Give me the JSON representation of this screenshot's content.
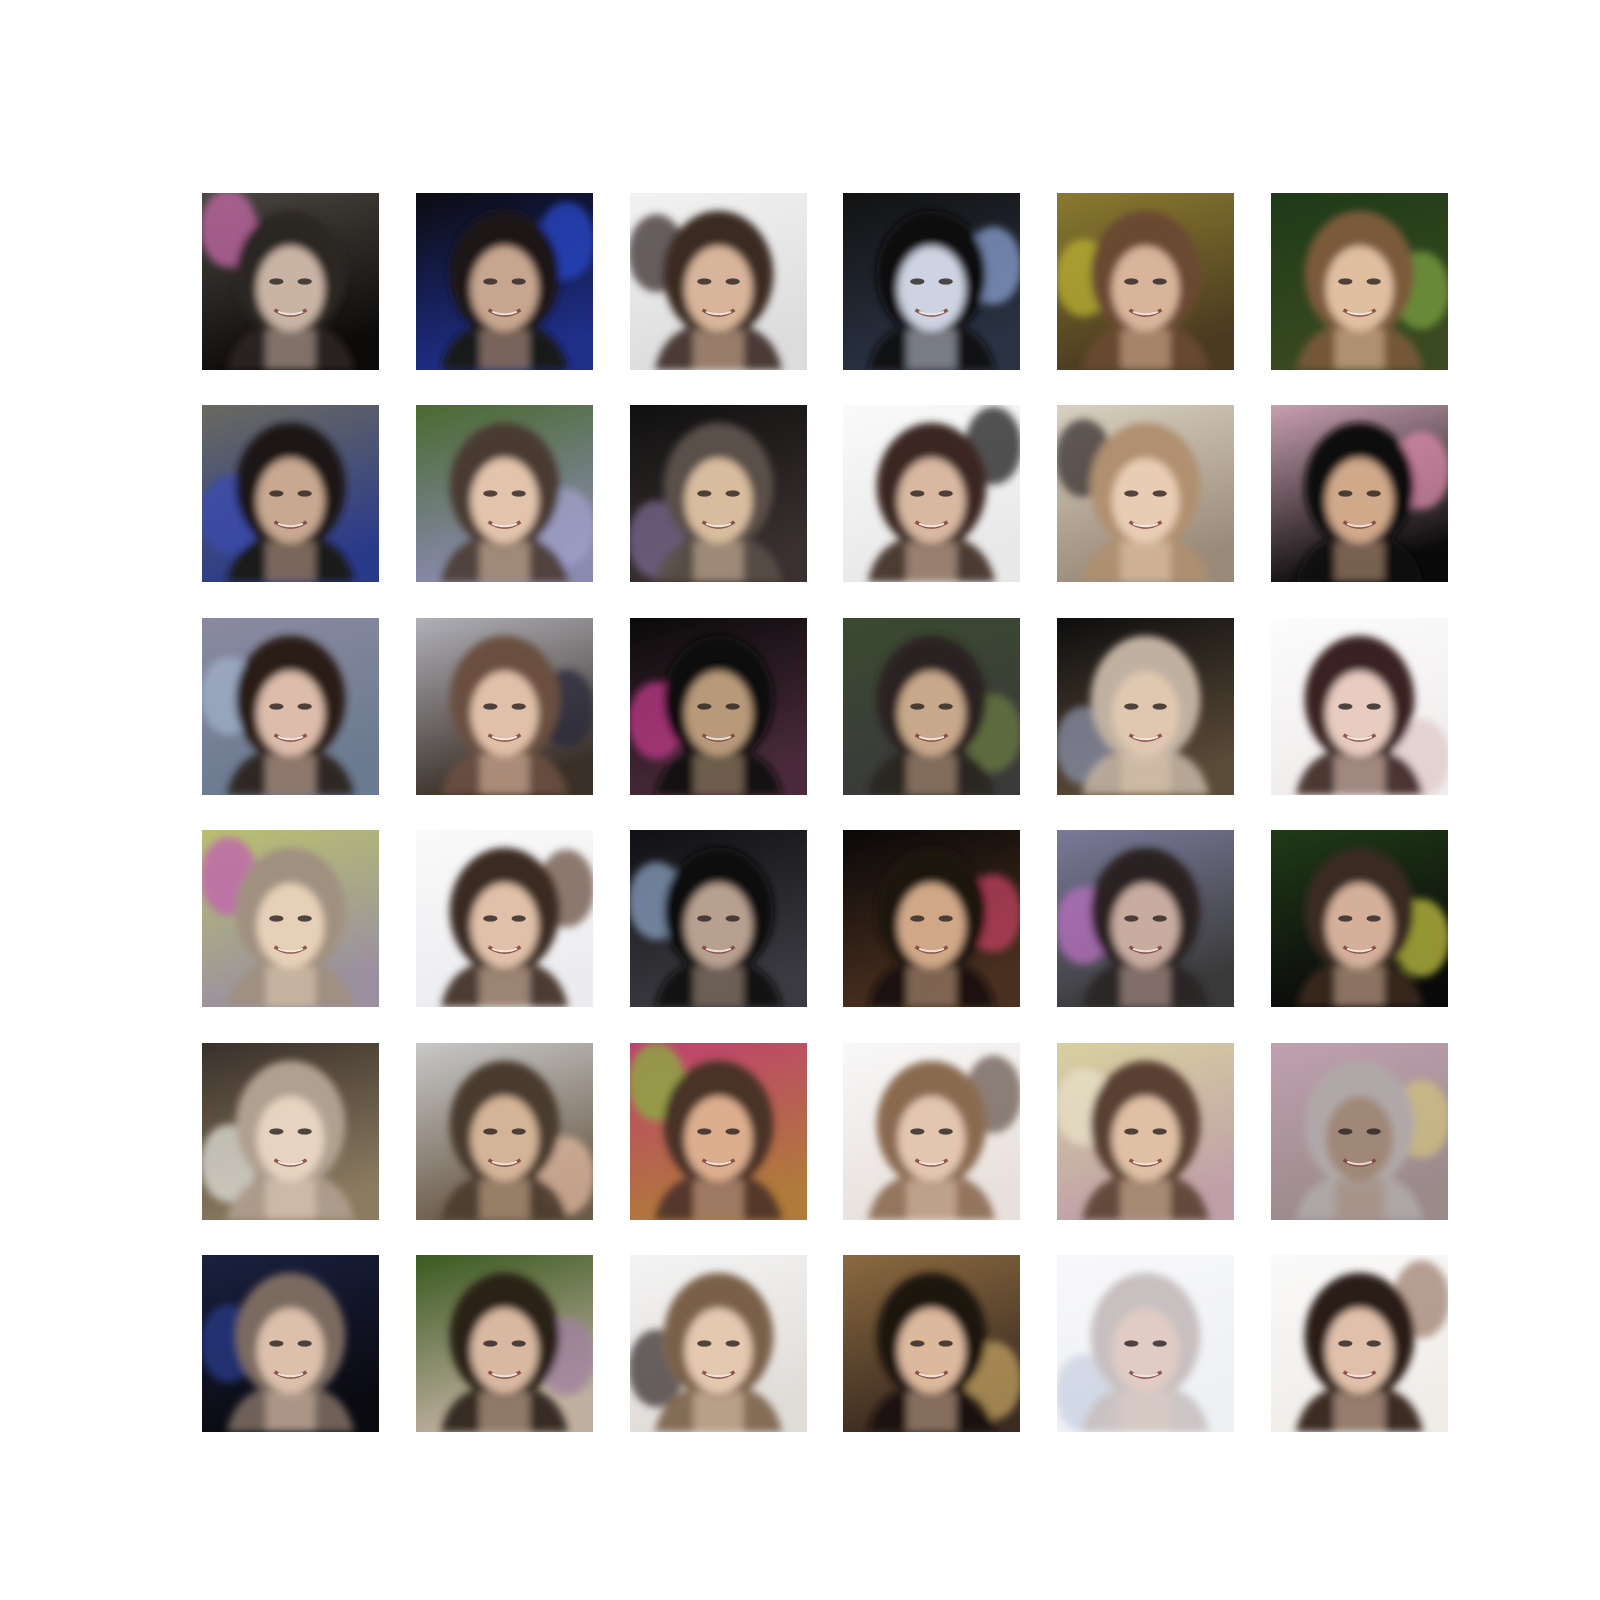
{
  "grid": {
    "rows": 6,
    "columns": 6,
    "samples": [
      {
        "bg_top": "#4a4640",
        "bg_bottom": "#0d0b0a",
        "accent": "#c46aa8",
        "hair": "#2b2522",
        "skin": "#c9b4a4"
      },
      {
        "bg_top": "#0b0b10",
        "bg_bottom": "#1f2f8a",
        "accent": "#2a47c8",
        "hair": "#1a1412",
        "skin": "#c7a68f"
      },
      {
        "bg_top": "#f2f2f2",
        "bg_bottom": "#dcdcdc",
        "accent": "#3a2e2c",
        "hair": "#3b2a22",
        "skin": "#d8b59a"
      },
      {
        "bg_top": "#121212",
        "bg_bottom": "#2a3244",
        "accent": "#8aa0d0",
        "hair": "#101010",
        "skin": "#cdd3e2"
      },
      {
        "bg_top": "#8a7a30",
        "bg_bottom": "#4a3a20",
        "accent": "#b8b030",
        "hair": "#6a4a30",
        "skin": "#d8b49a"
      },
      {
        "bg_top": "#1e3a18",
        "bg_bottom": "#3a4a20",
        "accent": "#7aa040",
        "hair": "#7a5a3a",
        "skin": "#e0bfa0"
      },
      {
        "bg_top": "#6a6a60",
        "bg_bottom": "#2a3a8a",
        "accent": "#3a4ab0",
        "hair": "#1a1512",
        "skin": "#c8a890"
      },
      {
        "bg_top": "#4a6a30",
        "bg_bottom": "#8a8ab0",
        "accent": "#a0a0c8",
        "hair": "#4a3a30",
        "skin": "#e2c4ac"
      },
      {
        "bg_top": "#101010",
        "bg_bottom": "#3a3030",
        "accent": "#7a6a90",
        "hair": "#5a5048",
        "skin": "#d8bc9e"
      },
      {
        "bg_top": "#fafafa",
        "bg_bottom": "#e8e8e8",
        "accent": "#1a1818",
        "hair": "#3a2820",
        "skin": "#d8b8a0"
      },
      {
        "bg_top": "#d8d0c0",
        "bg_bottom": "#9a8a7a",
        "accent": "#3a3030",
        "hair": "#b09070",
        "skin": "#e8cdb4"
      },
      {
        "bg_top": "#c8a0b0",
        "bg_bottom": "#0a0a0a",
        "accent": "#d88aa8",
        "hair": "#0e0c0c",
        "skin": "#d0a88a"
      },
      {
        "bg_top": "#8a8aa0",
        "bg_bottom": "#6a7a90",
        "accent": "#a0b0c8",
        "hair": "#2a1e18",
        "skin": "#dcbcaa"
      },
      {
        "bg_top": "#b0b0b8",
        "bg_bottom": "#3a3028",
        "accent": "#2a2a3a",
        "hair": "#6a5040",
        "skin": "#e0c0a8"
      },
      {
        "bg_top": "#0a0a0a",
        "bg_bottom": "#4a2a3a",
        "accent": "#c03a8a",
        "hair": "#101010",
        "skin": "#b89a7a"
      },
      {
        "bg_top": "#3a4a30",
        "bg_bottom": "#3a3a3a",
        "accent": "#6a7a40",
        "hair": "#2a2420",
        "skin": "#c8a88a"
      },
      {
        "bg_top": "#0e0e0e",
        "bg_bottom": "#5a4a38",
        "accent": "#8a90a8",
        "hair": "#c0b0a0",
        "skin": "#e0c8b0"
      },
      {
        "bg_top": "#fcfcfc",
        "bg_bottom": "#f0ecec",
        "accent": "#e0c8c8",
        "hair": "#3a2420",
        "skin": "#e8ccc0"
      },
      {
        "bg_top": "#b8c070",
        "bg_bottom": "#9a90a0",
        "accent": "#c060b0",
        "hair": "#a09080",
        "skin": "#e6d0b8"
      },
      {
        "bg_top": "#fafafa",
        "bg_bottom": "#ececf0",
        "accent": "#6a5040",
        "hair": "#3a2a20",
        "skin": "#e0c0a8"
      },
      {
        "bg_top": "#101014",
        "bg_bottom": "#3a3a40",
        "accent": "#8aa0c0",
        "hair": "#0c0c0c",
        "skin": "#b8a090"
      },
      {
        "bg_top": "#0a0808",
        "bg_bottom": "#4a3020",
        "accent": "#c04060",
        "hair": "#1a1210",
        "skin": "#d0a888"
      },
      {
        "bg_top": "#7a7a9a",
        "bg_bottom": "#3a3a3a",
        "accent": "#b870c0",
        "hair": "#2a2424",
        "skin": "#c8aca0"
      },
      {
        "bg_top": "#203a18",
        "bg_bottom": "#0a0a0a",
        "accent": "#c0c040",
        "hair": "#3a2a20",
        "skin": "#d4b09a"
      },
      {
        "bg_top": "#3a302a",
        "bg_bottom": "#8a7a60",
        "accent": "#e0e0d8",
        "hair": "#b0a090",
        "skin": "#e6d4c0"
      },
      {
        "bg_top": "#c8c8c8",
        "bg_bottom": "#6a5a48",
        "accent": "#e0b8a0",
        "hair": "#4a3a2e",
        "skin": "#d4b496"
      },
      {
        "bg_top": "#c04070",
        "bg_bottom": "#b07a3a",
        "accent": "#8ab040",
        "hair": "#4a3228",
        "skin": "#dcae8e"
      },
      {
        "bg_top": "#f8f8f8",
        "bg_bottom": "#e8e0dc",
        "accent": "#6a5a50",
        "hair": "#8a6a50",
        "skin": "#e2c6b0"
      },
      {
        "bg_top": "#d8d0a0",
        "bg_bottom": "#c0a0a8",
        "accent": "#e8e0c8",
        "hair": "#5a4030",
        "skin": "#e0c0a4"
      },
      {
        "bg_top": "#c0a0b0",
        "bg_bottom": "#9a8a8a",
        "accent": "#d0c080",
        "hair": "#b0a8a8",
        "skin": "#a08878"
      },
      {
        "bg_top": "#1a2040",
        "bg_bottom": "#0a0a10",
        "accent": "#2a3a8a",
        "hair": "#7a6a60",
        "skin": "#dcc0ac"
      },
      {
        "bg_top": "#3a5a20",
        "bg_bottom": "#c0b0a0",
        "accent": "#a080a0",
        "hair": "#2a2018",
        "skin": "#d8b8a0"
      },
      {
        "bg_top": "#f4f4f4",
        "bg_bottom": "#e0dcd8",
        "accent": "#3a3030",
        "hair": "#7a6048",
        "skin": "#e4c8b0"
      },
      {
        "bg_top": "#8a6a40",
        "bg_bottom": "#3a2a20",
        "accent": "#c0a060",
        "hair": "#1a1210",
        "skin": "#dcb89c"
      },
      {
        "bg_top": "#f8f8fa",
        "bg_bottom": "#eef0f4",
        "accent": "#c8d0e0",
        "hair": "#c8c0c0",
        "skin": "#e0ccc4"
      },
      {
        "bg_top": "#fafafa",
        "bg_bottom": "#f0ece8",
        "accent": "#a08070",
        "hair": "#2a1a12",
        "skin": "#e0c0aa"
      }
    ]
  }
}
